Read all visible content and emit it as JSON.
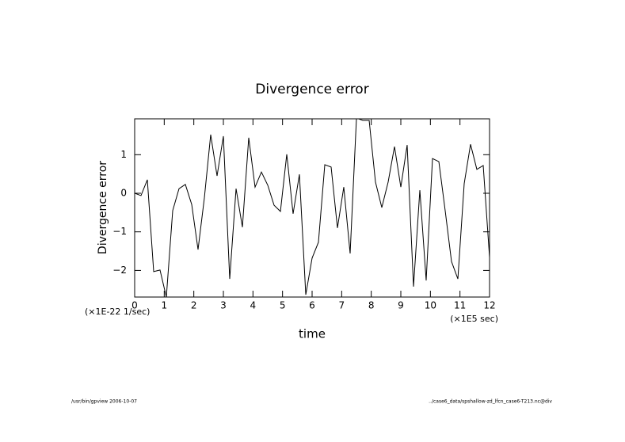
{
  "chart_data": {
    "type": "line",
    "title": "Divergence error",
    "ylabel": "Divergence error",
    "xlabel": "time",
    "y_unit": "(×1E-22 1/sec)",
    "x_unit": "(×1E5 sec)",
    "xlim": [
      0,
      12
    ],
    "ylim": [
      -2.69,
      1.93
    ],
    "xticks": [
      0,
      1,
      2,
      3,
      4,
      5,
      6,
      7,
      8,
      9,
      10,
      11,
      12
    ],
    "yticks": [
      {
        "value": -2,
        "label": "−2"
      },
      {
        "value": -1,
        "label": "−1"
      },
      0,
      1
    ],
    "grid": false,
    "x": [
      0,
      0.214,
      0.429,
      0.643,
      0.857,
      1.071,
      1.286,
      1.5,
      1.714,
      1.929,
      2.143,
      2.357,
      2.571,
      2.786,
      3,
      3.214,
      3.429,
      3.643,
      3.857,
      4.071,
      4.286,
      4.5,
      4.714,
      4.929,
      5.143,
      5.357,
      5.571,
      5.786,
      6,
      6.214,
      6.429,
      6.643,
      6.857,
      7.071,
      7.286,
      7.5,
      7.714,
      7.929,
      8.143,
      8.357,
      8.571,
      8.786,
      9,
      9.214,
      9.429,
      9.643,
      9.857,
      10.071,
      10.286,
      10.5,
      10.714,
      10.929,
      11.143,
      11.357,
      11.571,
      11.786,
      12
    ],
    "series": [
      {
        "color": "#000000",
        "values": [
          0,
          -0.06,
          0.35,
          -2.03,
          -1.99,
          -2.69,
          -0.45,
          0.12,
          0.23,
          -0.29,
          -1.46,
          -0.12,
          1.52,
          0.45,
          1.48,
          -2.22,
          0.12,
          -0.88,
          1.44,
          0.16,
          0.55,
          0.21,
          -0.31,
          -0.47,
          1.01,
          -0.53,
          0.49,
          -2.63,
          -1.68,
          -1.27,
          0.74,
          0.68,
          -0.9,
          0.16,
          -1.56,
          1.95,
          1.89,
          1.89,
          0.29,
          -0.37,
          0.29,
          1.21,
          0.16,
          1.25,
          -2.42,
          0.08,
          -2.26,
          0.9,
          0.82,
          -0.45,
          -1.77,
          -2.22,
          0.25,
          1.27,
          0.62,
          0.72,
          -1.66
        ]
      }
    ]
  },
  "footer": {
    "left": "/usr/bin/gpview  2006-10-07",
    "right": "../case6_data/spshallow-zd_lfcn_case6-T213.nc@div"
  }
}
